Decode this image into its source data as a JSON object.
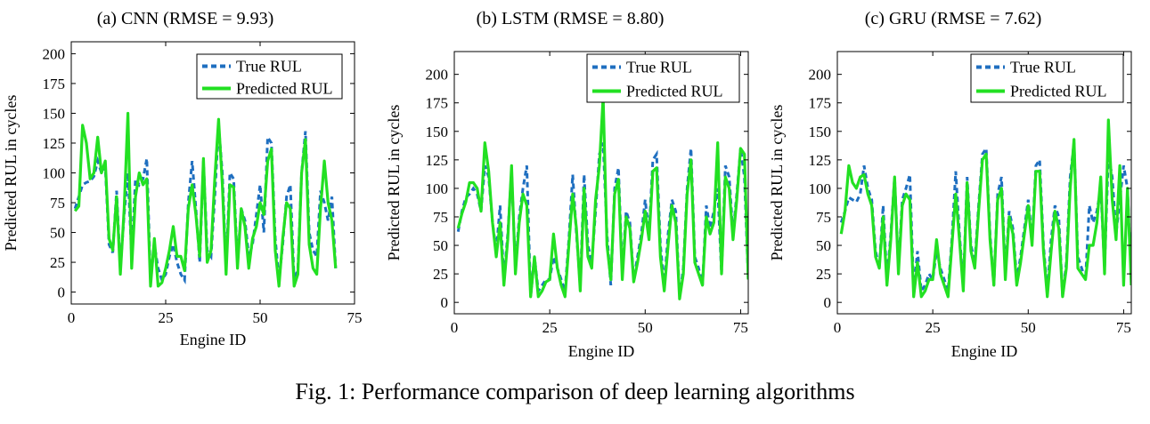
{
  "caption": "Fig. 1: Performance comparison of deep learning algorithms",
  "colors": {
    "true": "#1f6fc0",
    "pred": "#22e022",
    "axis": "#000000"
  },
  "chart_data": [
    {
      "type": "line",
      "title": "(a) CNN (RMSE = 9.93)",
      "xlabel": "Engine ID",
      "ylabel": "Predicted RUL in cycles",
      "xlim": [
        0,
        75
      ],
      "ylim": [
        -10,
        210
      ],
      "xticks": [
        0,
        25,
        50,
        75
      ],
      "yticks": [
        0,
        25,
        50,
        75,
        100,
        125,
        150,
        175,
        200
      ],
      "legend": [
        "True RUL",
        "Predicted RUL"
      ],
      "legend_position": "top-right",
      "series": [
        {
          "name": "True RUL",
          "x": [
            1,
            2,
            3,
            4,
            5,
            6,
            7,
            8,
            9,
            10,
            11,
            12,
            13,
            14,
            15,
            16,
            17,
            18,
            19,
            20,
            21,
            22,
            23,
            24,
            25,
            26,
            27,
            28,
            29,
            30,
            31,
            32,
            33,
            34,
            35,
            36,
            37,
            38,
            39,
            40,
            41,
            42,
            43,
            44,
            45,
            46,
            47,
            48,
            49,
            50,
            51,
            52,
            53,
            54,
            55,
            56,
            57,
            58,
            59,
            60,
            61,
            62,
            63,
            64,
            65,
            66,
            67,
            68,
            69,
            70
          ],
          "values": [
            70,
            80,
            90,
            92,
            93,
            97,
            110,
            100,
            105,
            40,
            33,
            85,
            20,
            65,
            100,
            30,
            95,
            90,
            95,
            112,
            10,
            40,
            20,
            10,
            15,
            30,
            40,
            25,
            15,
            10,
            75,
            110,
            70,
            25,
            110,
            35,
            30,
            80,
            140,
            100,
            20,
            100,
            95,
            25,
            70,
            60,
            30,
            40,
            65,
            90,
            50,
            130,
            125,
            45,
            10,
            40,
            80,
            90,
            10,
            20,
            100,
            135,
            50,
            35,
            30,
            85,
            75,
            60,
            80,
            20
          ]
        },
        {
          "name": "Predicted RUL",
          "x": [
            1,
            2,
            3,
            4,
            5,
            6,
            7,
            8,
            9,
            10,
            11,
            12,
            13,
            14,
            15,
            16,
            17,
            18,
            19,
            20,
            21,
            22,
            23,
            24,
            25,
            26,
            27,
            28,
            29,
            30,
            31,
            32,
            33,
            34,
            35,
            36,
            37,
            38,
            39,
            40,
            41,
            42,
            43,
            44,
            45,
            46,
            47,
            48,
            49,
            50,
            51,
            52,
            53,
            54,
            55,
            56,
            57,
            58,
            59,
            60,
            61,
            62,
            63,
            64,
            65,
            66,
            67,
            68,
            69,
            70
          ],
          "values": [
            68,
            72,
            140,
            125,
            95,
            100,
            130,
            100,
            110,
            45,
            35,
            80,
            15,
            70,
            150,
            20,
            80,
            100,
            90,
            95,
            5,
            45,
            5,
            8,
            20,
            35,
            55,
            30,
            30,
            18,
            70,
            90,
            65,
            30,
            112,
            25,
            35,
            95,
            145,
            90,
            15,
            90,
            88,
            20,
            70,
            55,
            20,
            45,
            55,
            75,
            65,
            110,
            120,
            35,
            5,
            45,
            75,
            70,
            5,
            15,
            100,
            128,
            40,
            20,
            15,
            70,
            110,
            75,
            60,
            20
          ]
        }
      ]
    },
    {
      "type": "line",
      "title": "(b) LSTM (RMSE = 8.80)",
      "xlabel": "Engine ID",
      "ylabel": "Predicted RUL in cycles",
      "xlim": [
        0,
        77
      ],
      "ylim": [
        -10,
        220
      ],
      "xticks": [
        0,
        25,
        50,
        75
      ],
      "yticks": [
        0,
        25,
        50,
        75,
        100,
        125,
        150,
        175,
        200
      ],
      "legend": [
        "True RUL",
        "Predicted RUL"
      ],
      "legend_position": "top-right",
      "series": [
        {
          "name": "True RUL",
          "x": [
            1,
            2,
            3,
            4,
            5,
            6,
            7,
            8,
            9,
            10,
            11,
            12,
            13,
            14,
            15,
            16,
            17,
            18,
            19,
            20,
            21,
            22,
            23,
            24,
            25,
            26,
            27,
            28,
            29,
            30,
            31,
            32,
            33,
            34,
            35,
            36,
            37,
            38,
            39,
            40,
            41,
            42,
            43,
            44,
            45,
            46,
            47,
            48,
            49,
            50,
            51,
            52,
            53,
            54,
            55,
            56,
            57,
            58,
            59,
            60,
            61,
            62,
            63,
            64,
            65,
            66,
            67,
            68,
            69,
            70,
            71,
            72,
            73,
            74,
            75,
            76,
            77
          ],
          "values": [
            62,
            80,
            92,
            95,
            100,
            95,
            80,
            120,
            110,
            70,
            45,
            85,
            20,
            60,
            115,
            30,
            75,
            100,
            120,
            5,
            40,
            10,
            15,
            20,
            20,
            40,
            30,
            20,
            10,
            55,
            112,
            60,
            15,
            112,
            50,
            35,
            80,
            130,
            140,
            60,
            15,
            100,
            118,
            25,
            80,
            70,
            20,
            40,
            60,
            90,
            60,
            125,
            130,
            50,
            15,
            60,
            90,
            80,
            5,
            30,
            100,
            135,
            40,
            30,
            15,
            85,
            65,
            80,
            100,
            25,
            120,
            110,
            60,
            95,
            135,
            110,
            20
          ]
        },
        {
          "name": "Predicted RUL",
          "x": [
            1,
            2,
            3,
            4,
            5,
            6,
            7,
            8,
            9,
            10,
            11,
            12,
            13,
            14,
            15,
            16,
            17,
            18,
            19,
            20,
            21,
            22,
            23,
            24,
            25,
            26,
            27,
            28,
            29,
            30,
            31,
            32,
            33,
            34,
            35,
            36,
            37,
            38,
            39,
            40,
            41,
            42,
            43,
            44,
            45,
            46,
            47,
            48,
            49,
            50,
            51,
            52,
            53,
            54,
            55,
            56,
            57,
            58,
            59,
            60,
            61,
            62,
            63,
            64,
            65,
            66,
            67,
            68,
            69,
            70,
            71,
            72,
            73,
            74,
            75,
            76,
            77
          ],
          "values": [
            65,
            78,
            88,
            105,
            105,
            100,
            80,
            140,
            115,
            70,
            40,
            70,
            15,
            55,
            120,
            25,
            70,
            95,
            85,
            5,
            40,
            5,
            10,
            18,
            20,
            60,
            30,
            15,
            5,
            50,
            95,
            65,
            10,
            100,
            40,
            30,
            90,
            120,
            180,
            50,
            20,
            95,
            108,
            20,
            75,
            65,
            18,
            35,
            55,
            80,
            55,
            115,
            118,
            40,
            10,
            50,
            85,
            70,
            3,
            25,
            95,
            125,
            35,
            25,
            15,
            75,
            60,
            70,
            140,
            25,
            110,
            100,
            55,
            90,
            135,
            130,
            20
          ]
        }
      ]
    },
    {
      "type": "line",
      "title": "(c) GRU (RMSE = 7.62)",
      "xlabel": "Engine ID",
      "ylabel": "Predicted RUL in cycles",
      "xlim": [
        0,
        77
      ],
      "ylim": [
        -10,
        220
      ],
      "xticks": [
        0,
        25,
        50,
        75
      ],
      "yticks": [
        0,
        25,
        50,
        75,
        100,
        125,
        150,
        175,
        200
      ],
      "legend": [
        "True RUL",
        "Predicted RUL"
      ],
      "legend_position": "top-right",
      "series": [
        {
          "name": "True RUL",
          "x": [
            1,
            2,
            3,
            4,
            5,
            6,
            7,
            8,
            9,
            10,
            11,
            12,
            13,
            14,
            15,
            16,
            17,
            18,
            19,
            20,
            21,
            22,
            23,
            24,
            25,
            26,
            27,
            28,
            29,
            30,
            31,
            32,
            33,
            34,
            35,
            36,
            37,
            38,
            39,
            40,
            41,
            42,
            43,
            44,
            45,
            46,
            47,
            48,
            49,
            50,
            51,
            52,
            53,
            54,
            55,
            56,
            57,
            58,
            59,
            60,
            61,
            62,
            63,
            64,
            65,
            66,
            67,
            68,
            69,
            70,
            71,
            72,
            73,
            74,
            75,
            76,
            77
          ],
          "values": [
            70,
            80,
            92,
            90,
            88,
            95,
            120,
            100,
            90,
            45,
            30,
            85,
            20,
            60,
            110,
            30,
            90,
            100,
            112,
            10,
            45,
            10,
            15,
            25,
            20,
            45,
            30,
            20,
            10,
            55,
            115,
            60,
            15,
            110,
            50,
            35,
            85,
            130,
            135,
            60,
            15,
            95,
            110,
            25,
            80,
            65,
            20,
            40,
            65,
            90,
            55,
            120,
            125,
            50,
            10,
            55,
            85,
            75,
            5,
            35,
            110,
            140,
            40,
            30,
            20,
            85,
            70,
            80,
            100,
            30,
            130,
            110,
            60,
            90,
            120,
            100,
            20
          ]
        },
        {
          "name": "Predicted RUL",
          "x": [
            1,
            2,
            3,
            4,
            5,
            6,
            7,
            8,
            9,
            10,
            11,
            12,
            13,
            14,
            15,
            16,
            17,
            18,
            19,
            20,
            21,
            22,
            23,
            24,
            25,
            26,
            27,
            28,
            29,
            30,
            31,
            32,
            33,
            34,
            35,
            36,
            37,
            38,
            39,
            40,
            41,
            42,
            43,
            44,
            45,
            46,
            47,
            48,
            49,
            50,
            51,
            52,
            53,
            54,
            55,
            56,
            57,
            58,
            59,
            60,
            61,
            62,
            63,
            64,
            65,
            66,
            67,
            68,
            69,
            70,
            71,
            72,
            73,
            74,
            75,
            76,
            77
          ],
          "values": [
            60,
            80,
            120,
            105,
            100,
            110,
            112,
            95,
            85,
            40,
            30,
            75,
            15,
            55,
            110,
            25,
            85,
            95,
            90,
            5,
            35,
            5,
            10,
            20,
            20,
            55,
            25,
            15,
            5,
            50,
            95,
            55,
            10,
            105,
            45,
            30,
            80,
            125,
            130,
            55,
            15,
            90,
            100,
            20,
            75,
            60,
            15,
            35,
            60,
            85,
            50,
            115,
            115,
            45,
            5,
            45,
            80,
            65,
            5,
            30,
            100,
            143,
            30,
            25,
            20,
            50,
            50,
            70,
            110,
            25,
            160,
            90,
            55,
            120,
            15,
            100,
            15
          ]
        }
      ]
    }
  ]
}
